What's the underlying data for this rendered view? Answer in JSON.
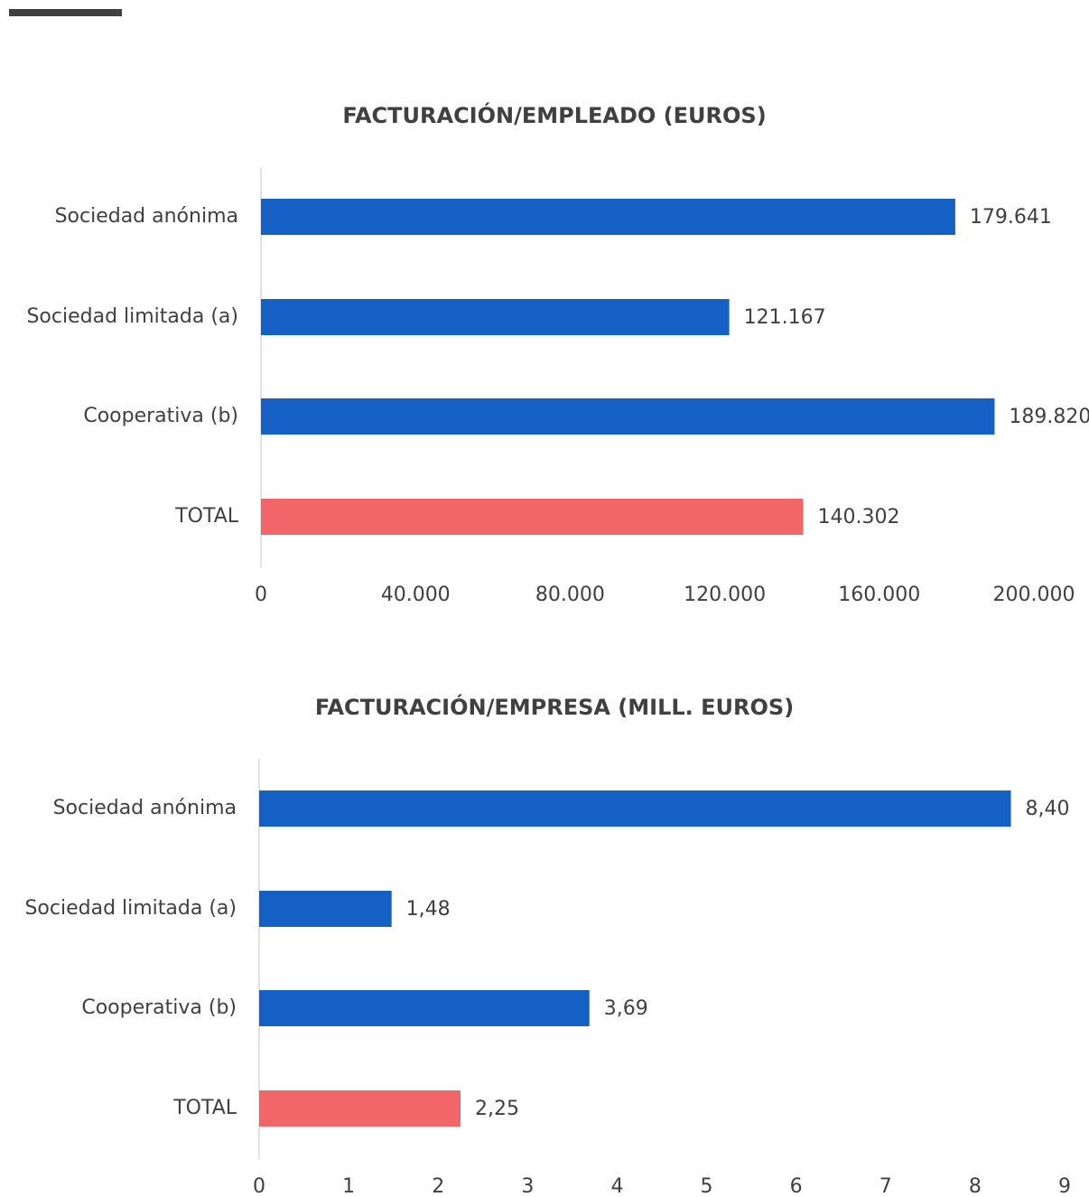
{
  "chart_data": [
    {
      "type": "bar",
      "orientation": "horizontal",
      "title": "FACTURACIÓN/EMPLEADO (EUROS)",
      "categories": [
        "Sociedad anónima",
        "Sociedad limitada (a)",
        "Cooperativa (b)",
        "TOTAL"
      ],
      "values": [
        179641,
        121167,
        189820,
        140302
      ],
      "value_labels": [
        "179.641",
        "121.167",
        "189.820",
        "140.302"
      ],
      "colors": [
        "#1560c4",
        "#1560c4",
        "#1560c4",
        "#f26669"
      ],
      "xlim": [
        0,
        200000
      ],
      "xticks": [
        0,
        {
          "value": 40000,
          "label": "40.000"
        },
        {
          "value": 80000,
          "label": "80.000"
        },
        {
          "value": 120000,
          "label": "120.000"
        },
        {
          "value": 160000,
          "label": "160.000"
        },
        {
          "value": 200000,
          "label": "200.000"
        }
      ],
      "grid": false
    },
    {
      "type": "bar",
      "orientation": "horizontal",
      "title": "FACTURACIÓN/EMPRESA (MILL. EUROS)",
      "categories": [
        "Sociedad anónima",
        "Sociedad limitada (a)",
        "Cooperativa (b)",
        "TOTAL"
      ],
      "values": [
        8.4,
        1.48,
        3.69,
        2.25
      ],
      "value_labels": [
        "8,40",
        "1,48",
        "3,69",
        "2,25"
      ],
      "colors": [
        "#1560c4",
        "#1560c4",
        "#1560c4",
        "#f26669"
      ],
      "xlim": [
        0,
        9
      ],
      "xticks": [
        0,
        1,
        2,
        3,
        4,
        5,
        6,
        7,
        8,
        9
      ],
      "grid": false
    }
  ]
}
